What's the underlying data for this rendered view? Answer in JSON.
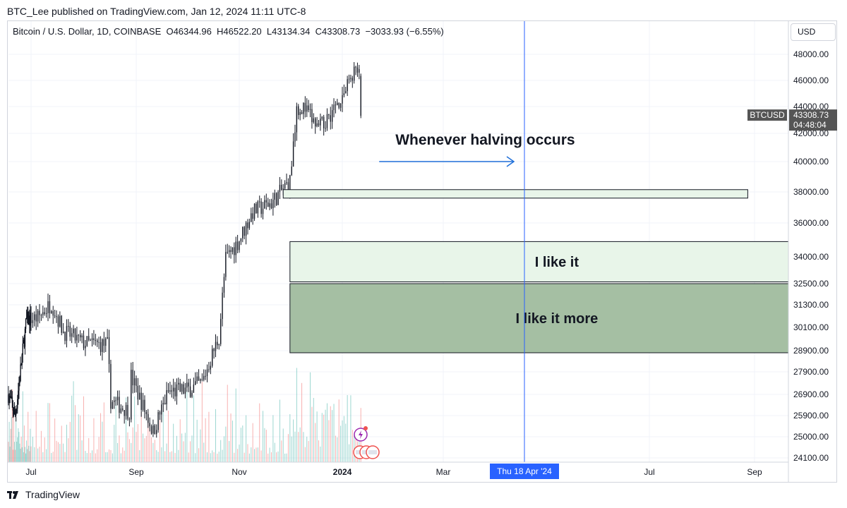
{
  "caption": "BTC_Lee published on TradingView.com, Jan 12, 2024 11:11 UTC-8",
  "symbol": {
    "name": "Bitcoin / U.S. Dollar, 1D, COINBASE",
    "open": "O46344.96",
    "high": "H46522.20",
    "low": "L43134.34",
    "close": "C43308.73",
    "change": "−3033.93 (−6.55%)"
  },
  "currency_button": "USD",
  "price_tag": {
    "ticker": "BTCUSD",
    "price": "43308.73",
    "countdown": "04:48:04"
  },
  "crosshair_date": "Thu 18 Apr '24",
  "brand": "TradingView",
  "colors": {
    "up": "#26a69a",
    "down": "#ef5350",
    "candle": "#131722",
    "crosshair": "#2962ff",
    "zone_light": "#e8f5e9",
    "zone_dark": "#a5bfa3",
    "arrow": "#1e6fd9",
    "price_tag": "#555555"
  },
  "chart_data": {
    "type": "candlestick",
    "title": "Bitcoin / U.S. Dollar, 1D, COINBASE",
    "x_ticks": [
      "Jul",
      "Sep",
      "Nov",
      "2024",
      "Mar",
      "Jul",
      "Sep"
    ],
    "y_ticks": [
      48000.0,
      46000.0,
      44000.0,
      42000.0,
      40000.0,
      38000.0,
      36000.0,
      34000.0,
      32500.0,
      31300.0,
      30100.0,
      28900.0,
      27900.0,
      26900.0,
      25900.0,
      25000.0,
      24100.0
    ],
    "y_tick_labels": [
      "48000.00",
      "46000.00",
      "44000.00",
      "42000.00",
      "40000.00",
      "38000.00",
      "36000.00",
      "34000.00",
      "32500.00",
      "31300.00",
      "30100.00",
      "28900.00",
      "27900.00",
      "26900.00",
      "25900.00",
      "25000.00",
      "24100.00"
    ],
    "y_scale": "log",
    "last_price": 43308.73,
    "price_path": [
      [
        "2023-06-01",
        26900
      ],
      [
        "2023-06-10",
        25900
      ],
      [
        "2023-06-20",
        28900
      ],
      [
        "2023-06-25",
        30500
      ],
      [
        "2023-07-05",
        30600
      ],
      [
        "2023-07-13",
        31400
      ],
      [
        "2023-07-20",
        29900
      ],
      [
        "2023-08-01",
        29300
      ],
      [
        "2023-08-15",
        29200
      ],
      [
        "2023-08-17",
        26600
      ],
      [
        "2023-08-28",
        26100
      ],
      [
        "2023-08-29",
        27700
      ],
      [
        "2023-09-11",
        25200
      ],
      [
        "2023-09-20",
        27000
      ],
      [
        "2023-10-01",
        27100
      ],
      [
        "2023-10-10",
        27400
      ],
      [
        "2023-10-20",
        29600
      ],
      [
        "2023-10-24",
        33900
      ],
      [
        "2023-11-01",
        35000
      ],
      [
        "2023-11-09",
        36700
      ],
      [
        "2023-11-20",
        37300
      ],
      [
        "2023-12-01",
        38700
      ],
      [
        "2023-12-05",
        44000
      ],
      [
        "2023-12-10",
        43800
      ],
      [
        "2023-12-18",
        42300
      ],
      [
        "2023-12-25",
        43500
      ],
      [
        "2024-01-02",
        45000
      ],
      [
        "2024-01-08",
        46800
      ],
      [
        "2024-01-11",
        46300
      ],
      [
        "2024-01-12",
        43308.73
      ]
    ],
    "zones": [
      {
        "label": "",
        "from_date": "2023-11-27",
        "to_date": "2024-08-28",
        "low": 37600,
        "high": 38150,
        "style": "light"
      },
      {
        "label": "I like it",
        "from_date": "2023-12-01",
        "to_date": "2024-10-31",
        "low": 32600,
        "high": 34900,
        "style": "light"
      },
      {
        "label": "I like it more",
        "from_date": "2023-12-01",
        "to_date": "2024-10-31",
        "low": 28800,
        "high": 32500,
        "style": "dark"
      }
    ],
    "annotation": {
      "text": "Whenever halving occurs",
      "arrow_from": "2024-01-12",
      "arrow_to": "2024-04-18",
      "price": 40000
    },
    "crosshair_x": "2024-04-18"
  }
}
